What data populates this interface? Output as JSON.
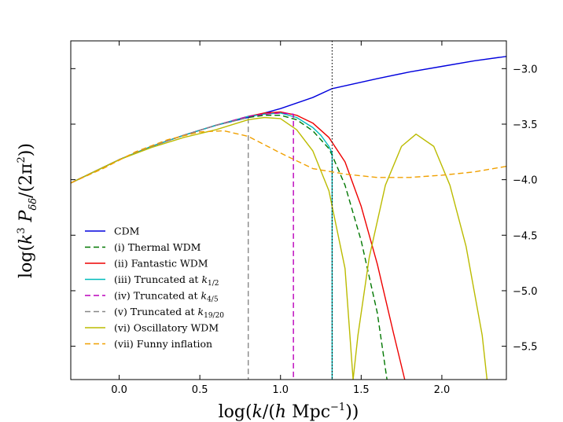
{
  "chart_data": {
    "type": "line",
    "title": "",
    "xlabel": "log(k/(h Mpc⁻¹))",
    "ylabel": "log(k³ P_δδ/(2π²))",
    "xlim": [
      -0.3,
      2.4
    ],
    "ylim": [
      -5.8,
      -2.75
    ],
    "x_ticks": [
      0.0,
      0.5,
      1.0,
      1.5,
      2.0
    ],
    "x_tick_labels": [
      "0.0",
      "0.5",
      "1.0",
      "1.5",
      "2.0"
    ],
    "y_ticks": [
      -3.0,
      -3.5,
      -4.0,
      -4.5,
      -5.0,
      -5.5
    ],
    "y_tick_labels": [
      "−3.0",
      "−3.5",
      "−4.0",
      "−4.5",
      "−5.0",
      "−5.5"
    ],
    "grid": false,
    "legend_position": "lower-left",
    "reference_lines": [
      {
        "orientation": "vertical",
        "x": 1.32,
        "style": "dotted",
        "color": "#000000"
      }
    ],
    "series": [
      {
        "name": "CDM",
        "color": "#0000dd",
        "style": "solid",
        "x": [
          -0.3,
          0.0,
          0.2,
          0.4,
          0.6,
          0.8,
          1.0,
          1.2,
          1.32,
          1.6,
          1.8,
          2.0,
          2.2,
          2.4
        ],
        "y": [
          -4.03,
          -3.82,
          -3.7,
          -3.6,
          -3.51,
          -3.44,
          -3.36,
          -3.26,
          -3.18,
          -3.09,
          -3.03,
          -2.98,
          -2.93,
          -2.89
        ]
      },
      {
        "name": "(i) Thermal WDM",
        "color": "#007700",
        "style": "dashed",
        "x": [
          -0.3,
          0.0,
          0.2,
          0.4,
          0.6,
          0.8,
          0.9,
          1.0,
          1.1,
          1.2,
          1.3,
          1.32,
          1.4,
          1.5,
          1.6,
          1.66
        ],
        "y": [
          -4.03,
          -3.82,
          -3.7,
          -3.6,
          -3.51,
          -3.44,
          -3.42,
          -3.42,
          -3.46,
          -3.56,
          -3.72,
          -3.78,
          -4.05,
          -4.55,
          -5.2,
          -5.8
        ]
      },
      {
        "name": "(ii) Fantastic WDM",
        "color": "#ee0000",
        "style": "solid",
        "x": [
          -0.3,
          0.0,
          0.2,
          0.4,
          0.6,
          0.8,
          0.9,
          1.0,
          1.1,
          1.2,
          1.3,
          1.4,
          1.5,
          1.6,
          1.7,
          1.77
        ],
        "y": [
          -4.03,
          -3.82,
          -3.7,
          -3.6,
          -3.51,
          -3.43,
          -3.4,
          -3.39,
          -3.42,
          -3.49,
          -3.62,
          -3.84,
          -4.24,
          -4.76,
          -5.38,
          -5.8
        ]
      },
      {
        "name": "(iii) Truncated at k_{1/2}",
        "color": "#00bbbb",
        "style": "solid",
        "x": [
          -0.3,
          0.0,
          0.2,
          0.4,
          0.6,
          0.8,
          0.9,
          1.0,
          1.1,
          1.2,
          1.25,
          1.3,
          1.32,
          1.32
        ],
        "y": [
          -4.03,
          -3.82,
          -3.7,
          -3.6,
          -3.51,
          -3.43,
          -3.41,
          -3.4,
          -3.44,
          -3.53,
          -3.6,
          -3.7,
          -3.76,
          -5.8
        ]
      },
      {
        "name": "(iv) Truncated at k_{4/5}",
        "color": "#bb00bb",
        "style": "dashed",
        "x": [
          -0.3,
          0.0,
          0.2,
          0.4,
          0.6,
          0.8,
          0.9,
          1.0,
          1.08,
          1.08
        ],
        "y": [
          -4.03,
          -3.82,
          -3.7,
          -3.6,
          -3.51,
          -3.43,
          -3.41,
          -3.4,
          -3.41,
          -5.8
        ]
      },
      {
        "name": "(v) Truncated at k_{19/20}",
        "color": "#888888",
        "style": "dashed",
        "x": [
          -0.3,
          0.0,
          0.2,
          0.4,
          0.6,
          0.8,
          0.8
        ],
        "y": [
          -4.03,
          -3.82,
          -3.7,
          -3.6,
          -3.51,
          -3.44,
          -5.8
        ]
      },
      {
        "name": "(vi) Oscillatory WDM",
        "color": "#bbbb00",
        "style": "solid",
        "x": [
          -0.3,
          0.0,
          0.2,
          0.4,
          0.6,
          0.8,
          0.9,
          1.0,
          1.1,
          1.2,
          1.3,
          1.4,
          1.43,
          1.45,
          1.48,
          1.55,
          1.65,
          1.75,
          1.84,
          1.95,
          2.05,
          2.15,
          2.25,
          2.28
        ],
        "y": [
          -4.03,
          -3.82,
          -3.71,
          -3.62,
          -3.55,
          -3.46,
          -3.44,
          -3.45,
          -3.55,
          -3.74,
          -4.1,
          -4.8,
          -5.4,
          -5.8,
          -5.4,
          -4.7,
          -4.05,
          -3.7,
          -3.59,
          -3.7,
          -4.05,
          -4.6,
          -5.4,
          -5.8
        ]
      },
      {
        "name": "(vii) Funny inflation",
        "color": "#f0a000",
        "style": "dashed",
        "x": [
          -0.3,
          -0.1,
          0.1,
          0.3,
          0.5,
          0.65,
          0.8,
          1.0,
          1.2,
          1.4,
          1.6,
          1.8,
          2.0,
          2.2,
          2.4
        ],
        "y": [
          -4.03,
          -3.9,
          -3.75,
          -3.64,
          -3.57,
          -3.56,
          -3.61,
          -3.76,
          -3.9,
          -3.95,
          -3.98,
          -3.98,
          -3.96,
          -3.93,
          -3.88
        ]
      }
    ]
  },
  "legend": {
    "items": [
      {
        "text": "CDM",
        "sub": ""
      },
      {
        "text": "(i) Thermal WDM",
        "sub": ""
      },
      {
        "text": "(ii) Fantastic WDM",
        "sub": ""
      },
      {
        "text": "(iii) Truncated at ",
        "sub": "1/2"
      },
      {
        "text": "(iv) Truncated at ",
        "sub": "4/5"
      },
      {
        "text": "(v) Truncated at ",
        "sub": "19/20"
      },
      {
        "text": "(vi) Oscillatory WDM",
        "sub": ""
      },
      {
        "text": "(vii) Funny inflation",
        "sub": ""
      }
    ],
    "k_symbol": "k"
  }
}
